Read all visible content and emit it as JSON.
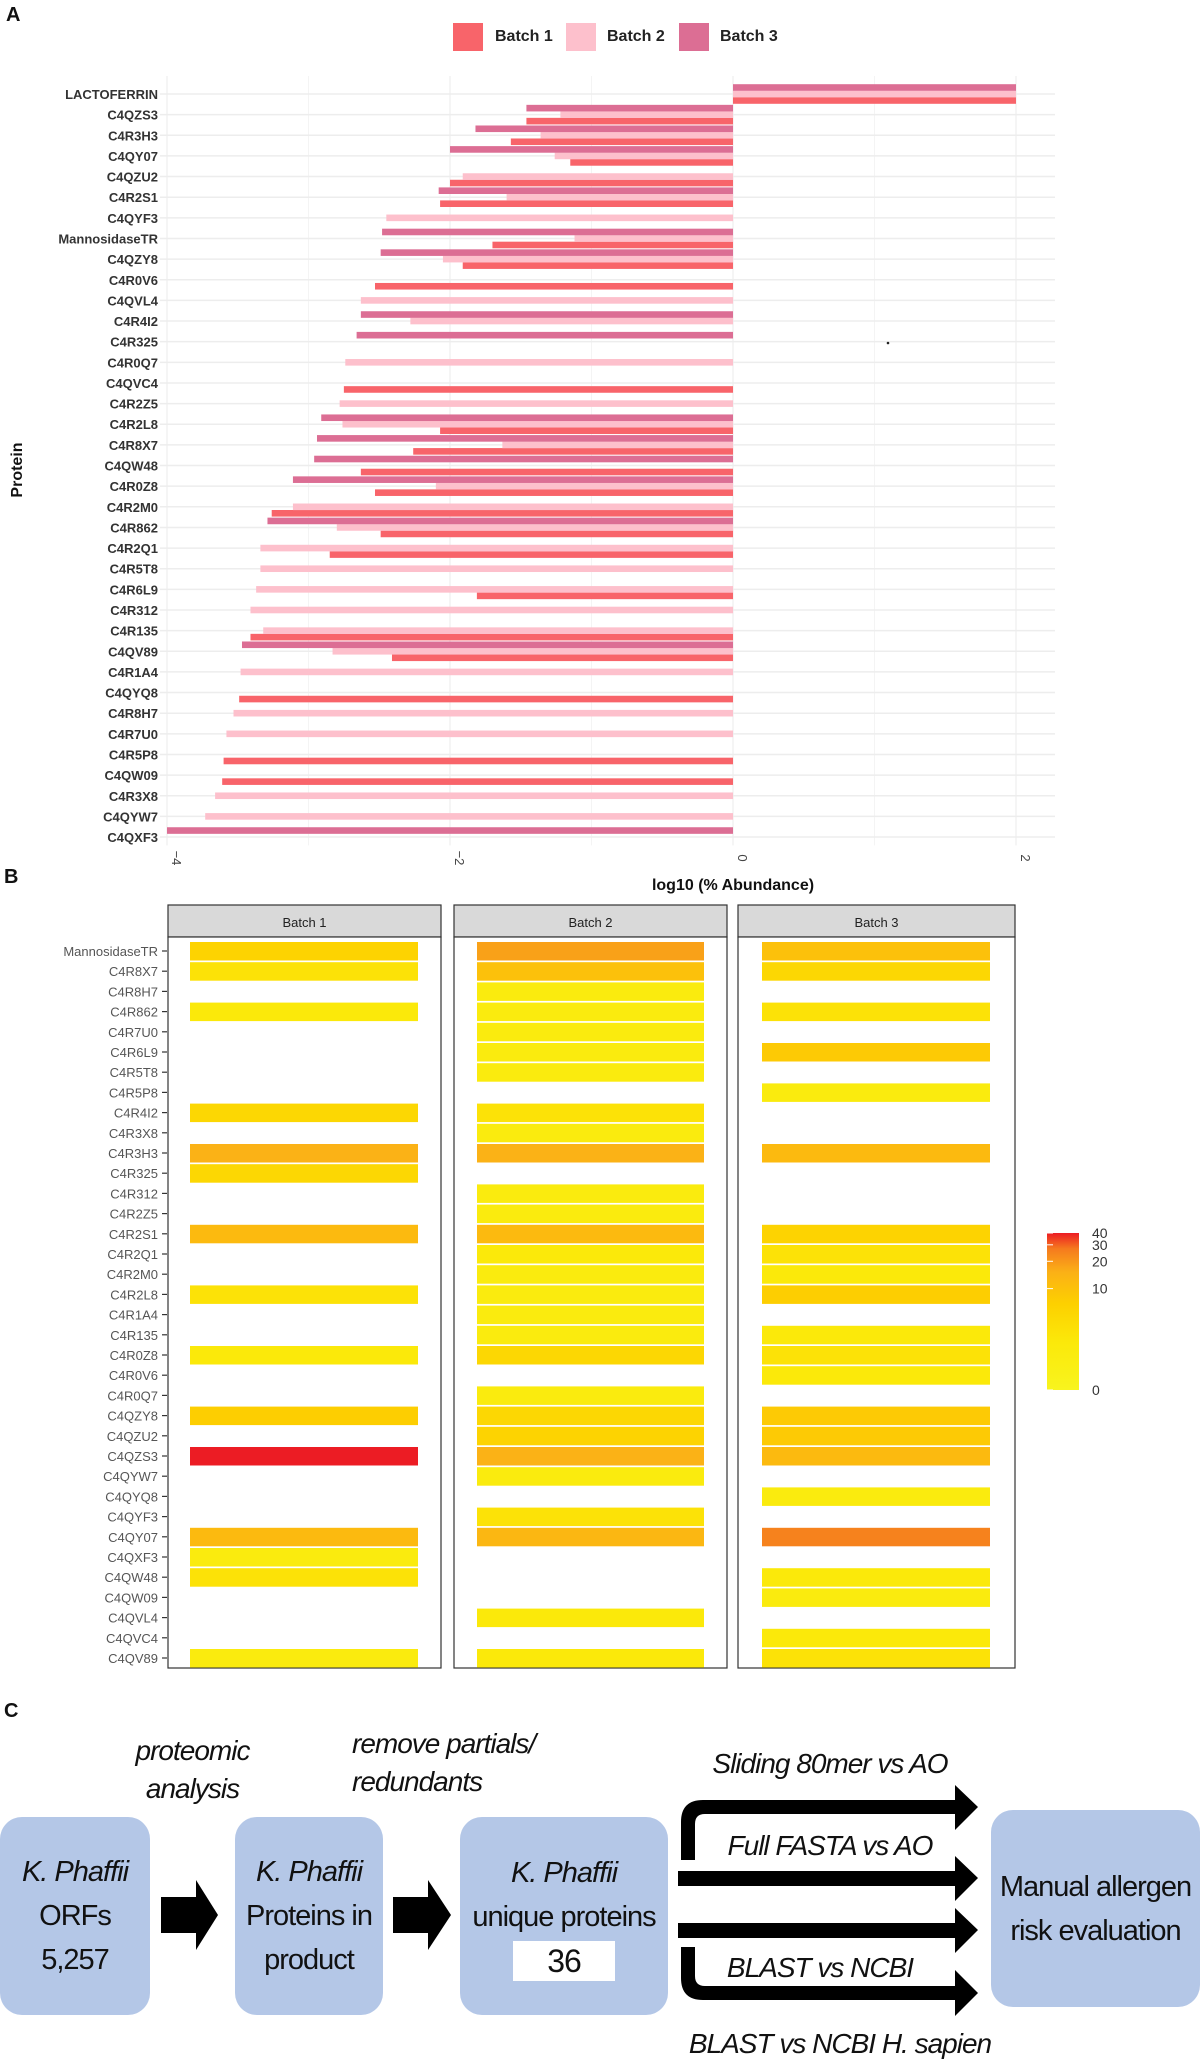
{
  "panels": {
    "a": "A",
    "b": "B",
    "c": "C"
  },
  "chart_data": [
    {
      "type": "bar",
      "orientation": "horizontal",
      "xlabel": "log10 (% Abundance)",
      "ylabel": "Protein",
      "xlim": [
        -4.05,
        2.27
      ],
      "xticks": [
        -4,
        -2,
        0,
        2
      ],
      "xtick_labels": [
        "−4",
        "−2",
        "0",
        "2"
      ],
      "grid": true,
      "legend_position": "top",
      "legend": [
        "Batch 1",
        "Batch 2",
        "Batch 3"
      ],
      "colors": [
        "#f8646a",
        "#fdc0cc",
        "#dc6e94"
      ],
      "categories": [
        "LACTOFERRIN",
        "C4QZS3",
        "C4R3H3",
        "C4QY07",
        "C4QZU2",
        "C4R2S1",
        "C4QYF3",
        "MannosidaseTR",
        "C4QZY8",
        "C4R0V6",
        "C4QVL4",
        "C4R4I2",
        "C4R325",
        "C4R0Q7",
        "C4QVC4",
        "C4R2Z5",
        "C4R2L8",
        "C4R8X7",
        "C4QW48",
        "C4R0Z8",
        "C4R2M0",
        "C4R862",
        "C4R2Q1",
        "C4R5T8",
        "C4R6L9",
        "C4R312",
        "C4R135",
        "C4QV89",
        "C4R1A4",
        "C4QYQ8",
        "C4R8H7",
        "C4R7U0",
        "C4R5P8",
        "C4QW09",
        "C4R3X8",
        "C4QYW7",
        "C4QXF3"
      ],
      "series": [
        {
          "name": "Batch 1",
          "values": [
            2.0,
            -1.46,
            -1.57,
            -1.15,
            -2.0,
            -2.07,
            null,
            -1.7,
            -1.91,
            -2.53,
            null,
            null,
            null,
            null,
            -2.75,
            null,
            -2.07,
            -2.26,
            -2.63,
            -2.53,
            -3.26,
            -2.49,
            -2.85,
            null,
            -1.81,
            null,
            -3.41,
            -2.41,
            null,
            -3.49,
            null,
            null,
            -3.6,
            -3.61,
            null,
            null,
            null
          ]
        },
        {
          "name": "Batch 2",
          "values": [
            2.0,
            -1.22,
            -1.36,
            -1.26,
            -1.91,
            -1.6,
            -2.45,
            -1.12,
            -2.05,
            null,
            -2.63,
            -2.28,
            null,
            -2.74,
            null,
            -2.78,
            -2.76,
            -1.63,
            null,
            -2.1,
            -3.11,
            -2.8,
            -3.34,
            -3.34,
            -3.37,
            -3.41,
            -3.32,
            -2.83,
            -3.48,
            null,
            -3.53,
            -3.58,
            null,
            null,
            -3.66,
            -3.73,
            null
          ]
        },
        {
          "name": "Batch 3",
          "values": [
            2.0,
            -1.46,
            -1.82,
            -2.0,
            null,
            -2.08,
            null,
            -2.48,
            -2.49,
            null,
            null,
            -2.63,
            -2.66,
            null,
            null,
            null,
            -2.91,
            -2.94,
            -2.96,
            -3.11,
            null,
            -3.29,
            null,
            null,
            null,
            null,
            null,
            -3.47,
            null,
            null,
            null,
            null,
            null,
            null,
            null,
            null,
            -4.0
          ]
        }
      ]
    },
    {
      "type": "heatmap",
      "facets": [
        "Batch 1",
        "Batch 2",
        "Batch 3"
      ],
      "rows": [
        "MannosidaseTR",
        "C4R8X7",
        "C4R8H7",
        "C4R862",
        "C4R7U0",
        "C4R6L9",
        "C4R5T8",
        "C4R5P8",
        "C4R4I2",
        "C4R3X8",
        "C4R3H3",
        "C4R325",
        "C4R312",
        "C4R2Z5",
        "C4R2S1",
        "C4R2Q1",
        "C4R2M0",
        "C4R2L8",
        "C4R1A4",
        "C4R135",
        "C4R0Z8",
        "C4R0V6",
        "C4R0Q7",
        "C4QZY8",
        "C4QZU2",
        "C4QZS3",
        "C4QYW7",
        "C4QYQ8",
        "C4QYF3",
        "C4QY07",
        "C4QXF3",
        "C4QW48",
        "C4QW09",
        "C4QVL4",
        "C4QVC4",
        "C4QV89"
      ],
      "values": [
        [
          6,
          3,
          null,
          2,
          null,
          null,
          null,
          null,
          5,
          null,
          15,
          5,
          null,
          null,
          12,
          null,
          null,
          3,
          null,
          null,
          2,
          null,
          null,
          7,
          null,
          40,
          null,
          null,
          null,
          12,
          1.5,
          3,
          null,
          null,
          null,
          1.5
        ],
        [
          18,
          10,
          1.5,
          1.5,
          1.5,
          1.5,
          1.5,
          null,
          3,
          1.5,
          15,
          null,
          1.5,
          1.5,
          12,
          2,
          1.5,
          1.5,
          1.5,
          1.5,
          5,
          null,
          1.5,
          5,
          6,
          15,
          1.5,
          null,
          3,
          13,
          null,
          null,
          null,
          2,
          null,
          2
        ],
        [
          10,
          5,
          null,
          3,
          null,
          8,
          null,
          1.5,
          null,
          null,
          12,
          null,
          null,
          null,
          6,
          3,
          2,
          7,
          null,
          2,
          3,
          2,
          null,
          8,
          8,
          12,
          null,
          1.5,
          null,
          25,
          null,
          2,
          1.5,
          null,
          2,
          3
        ]
      ],
      "color_scale": {
        "min": 0,
        "max": 40,
        "ticks": [
          0,
          10,
          20,
          30,
          40
        ],
        "tick_labels": [
          "0",
          "10",
          "20",
          "30",
          "40"
        ],
        "low_color": "#f8f41e",
        "high_color": "#ec1c24"
      }
    }
  ],
  "flow": {
    "boxes": [
      {
        "lines": [
          "K. Phaffii",
          "ORFs",
          "5,257"
        ],
        "italic": [
          true,
          false,
          false
        ]
      },
      {
        "lines": [
          "K. Phaffii",
          "Proteins in",
          "product"
        ],
        "italic": [
          true,
          false,
          false
        ]
      },
      {
        "lines": [
          "K. Phaffii",
          "unique proteins"
        ],
        "italic": [
          true,
          false
        ],
        "count": "36"
      },
      {
        "lines": [
          "Manual allergen",
          "risk evaluation"
        ],
        "italic": [
          false,
          false
        ]
      }
    ],
    "step1": [
      "proteomic",
      "analysis"
    ],
    "step2": [
      "remove partials/",
      "redundants"
    ],
    "branches": [
      "Sliding 80mer vs AO",
      "Full FASTA vs AO",
      "BLAST vs NCBI",
      "BLAST vs NCBI H. sapien"
    ],
    "box_color": "#b4c7e7"
  }
}
